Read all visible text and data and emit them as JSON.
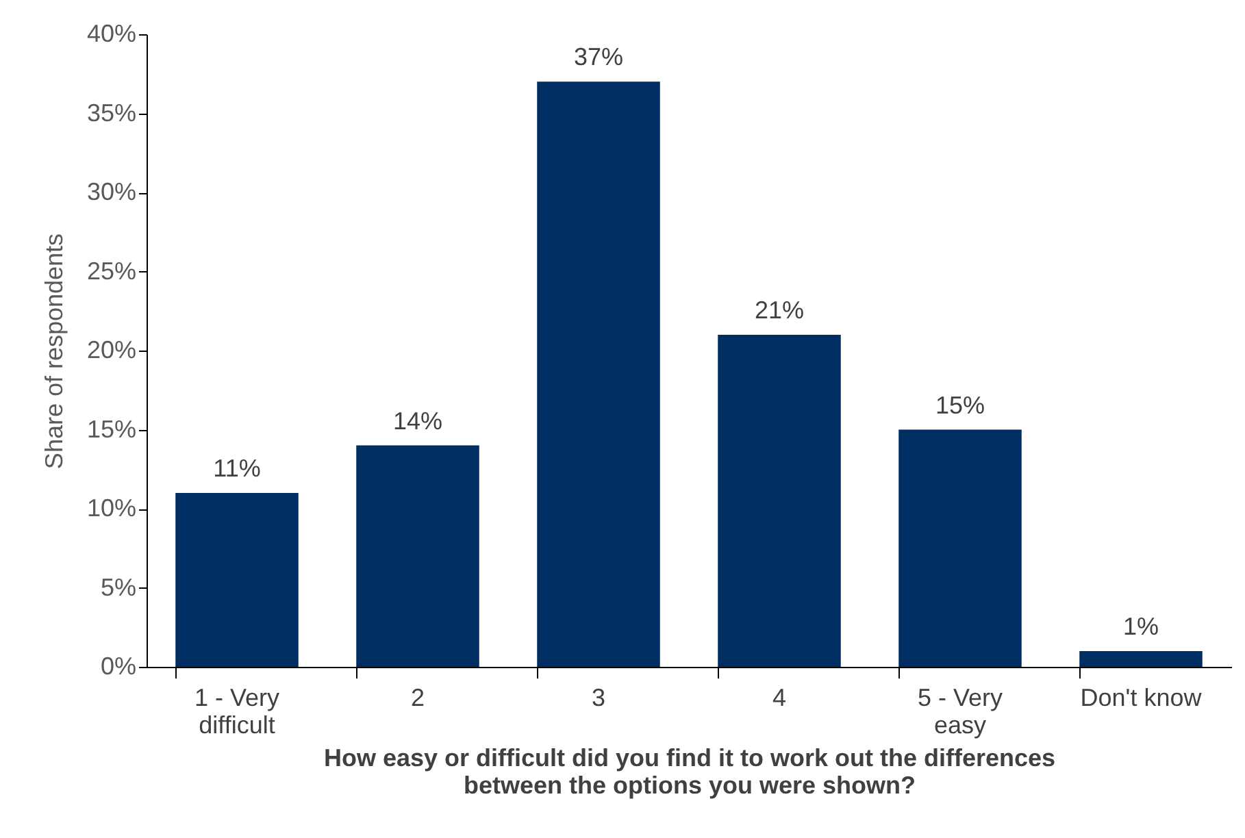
{
  "chart_data": {
    "type": "bar",
    "xlabel": "How easy or difficult did you find it to work out the differences between the options you were shown?",
    "ylabel": "Share of respondents",
    "categories": [
      "1 - Very difficult",
      "2",
      "3",
      "4",
      "5 - Very easy",
      "Don't know"
    ],
    "values": [
      11,
      14,
      37,
      21,
      15,
      1
    ],
    "value_labels": [
      "11%",
      "14%",
      "37%",
      "21%",
      "15%",
      "1%"
    ],
    "color": "#002d62",
    "ylim": [
      0,
      40
    ],
    "yticks": [
      {
        "value": 0,
        "label": "0%"
      },
      {
        "value": 5,
        "label": "5%"
      },
      {
        "value": 10,
        "label": "10%"
      },
      {
        "value": 15,
        "label": "15%"
      },
      {
        "value": 20,
        "label": "20%"
      },
      {
        "value": 25,
        "label": "25%"
      },
      {
        "value": 30,
        "label": "30%"
      },
      {
        "value": 35,
        "label": "35%"
      },
      {
        "value": 40,
        "label": "40%"
      }
    ],
    "grid": false
  }
}
